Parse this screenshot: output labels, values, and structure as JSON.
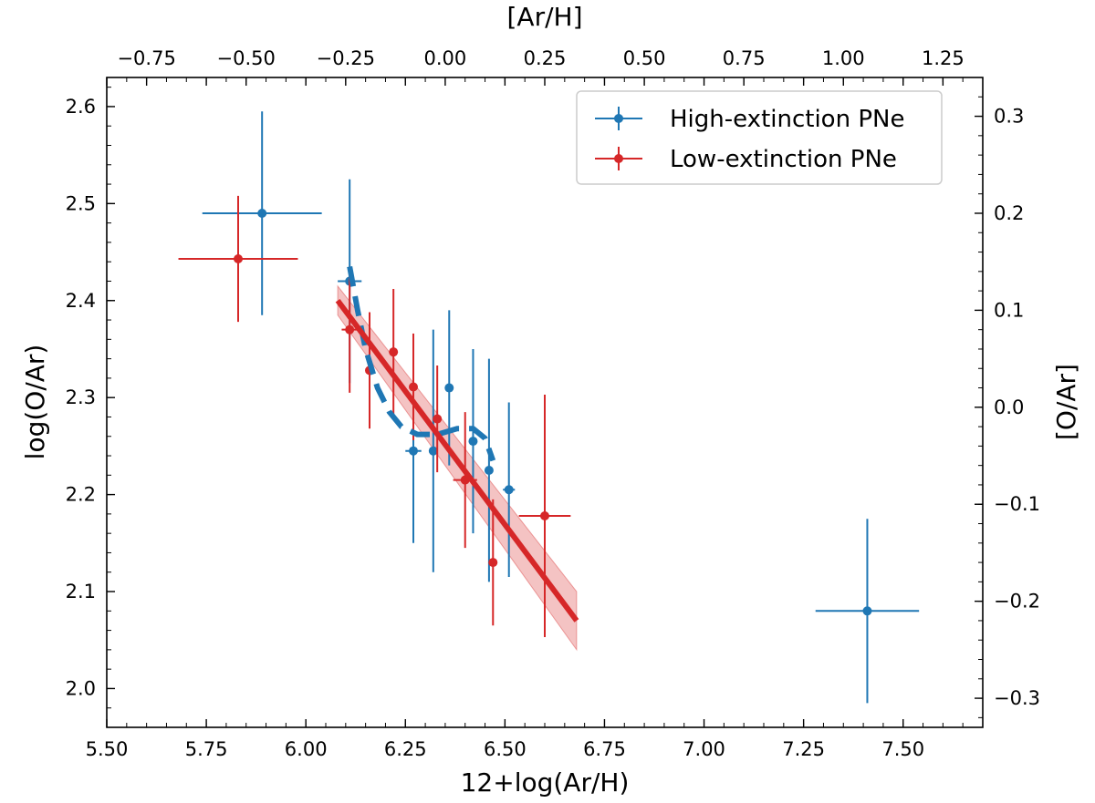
{
  "chart_data": {
    "type": "scatter",
    "xlabel": "12+log(Ar/H)",
    "ylabel": "log(O/Ar)",
    "top_xlabel": "[Ar/H]",
    "right_ylabel": "[O/Ar]",
    "xlim": [
      5.5,
      7.7
    ],
    "ylim": [
      1.96,
      2.63
    ],
    "x_ticks": [
      "5.50",
      "5.75",
      "6.00",
      "6.25",
      "6.50",
      "6.75",
      "7.00",
      "7.25",
      "7.50"
    ],
    "y_ticks": [
      "2.0",
      "2.1",
      "2.2",
      "2.3",
      "2.4",
      "2.5",
      "2.6"
    ],
    "top_xlim": [
      -0.85,
      1.35
    ],
    "top_ticks": [
      "−0.75",
      "−0.50",
      "−0.25",
      "0.00",
      "0.25",
      "0.50",
      "0.75",
      "1.00",
      "1.25"
    ],
    "right_ylim": [
      -0.33,
      0.34
    ],
    "right_ticks": [
      "−0.3",
      "−0.2",
      "−0.1",
      "0.0",
      "0.1",
      "0.2",
      "0.3"
    ],
    "legend_position": "top-right",
    "grid": false,
    "series": [
      {
        "name": "High-extinction PNe",
        "color": "#1f77b4",
        "points": [
          {
            "x": 5.89,
            "y": 2.49,
            "xerr": 0.15,
            "yerr": 0.105
          },
          {
            "x": 6.11,
            "y": 2.42,
            "xerr": 0.03,
            "yerr": 0.105
          },
          {
            "x": 6.27,
            "y": 2.245,
            "xerr": 0.02,
            "yerr": 0.095
          },
          {
            "x": 6.32,
            "y": 2.245,
            "xerr": 0.01,
            "yerr": 0.125
          },
          {
            "x": 6.36,
            "y": 2.31,
            "xerr": 0.01,
            "yerr": 0.08
          },
          {
            "x": 6.42,
            "y": 2.255,
            "xerr": 0.01,
            "yerr": 0.095
          },
          {
            "x": 6.46,
            "y": 2.225,
            "xerr": 0.01,
            "yerr": 0.115
          },
          {
            "x": 6.51,
            "y": 2.205,
            "xerr": 0.015,
            "yerr": 0.09
          },
          {
            "x": 7.41,
            "y": 2.08,
            "xerr": 0.13,
            "yerr": 0.095
          }
        ]
      },
      {
        "name": "Low-extinction PNe",
        "color": "#d62728",
        "points": [
          {
            "x": 5.83,
            "y": 2.443,
            "xerr": 0.15,
            "yerr": 0.065
          },
          {
            "x": 6.11,
            "y": 2.37,
            "xerr": 0.02,
            "yerr": 0.065
          },
          {
            "x": 6.16,
            "y": 2.328,
            "xerr": 0.01,
            "yerr": 0.06
          },
          {
            "x": 6.22,
            "y": 2.347,
            "xerr": 0.01,
            "yerr": 0.065
          },
          {
            "x": 6.27,
            "y": 2.311,
            "xerr": 0.01,
            "yerr": 0.055
          },
          {
            "x": 6.33,
            "y": 2.278,
            "xerr": 0.01,
            "yerr": 0.055
          },
          {
            "x": 6.4,
            "y": 2.215,
            "xerr": 0.03,
            "yerr": 0.07
          },
          {
            "x": 6.47,
            "y": 2.13,
            "xerr": 0.01,
            "yerr": 0.065
          },
          {
            "x": 6.6,
            "y": 2.178,
            "xerr": 0.065,
            "yerr": 0.125
          }
        ]
      }
    ],
    "fit_line": {
      "color": "#d62728",
      "x": [
        6.08,
        6.68
      ],
      "y": [
        2.4,
        2.07
      ],
      "band_lower": [
        2.385,
        2.04
      ],
      "band_upper": [
        2.415,
        2.1
      ]
    },
    "dashed_curve": {
      "color": "#1f77b4",
      "x": [
        6.11,
        6.13,
        6.15,
        6.18,
        6.21,
        6.24,
        6.28,
        6.33,
        6.38,
        6.42,
        6.45,
        6.47
      ],
      "y": [
        2.435,
        2.39,
        2.35,
        2.31,
        2.285,
        2.27,
        2.262,
        2.262,
        2.268,
        2.268,
        2.258,
        2.235
      ]
    }
  }
}
